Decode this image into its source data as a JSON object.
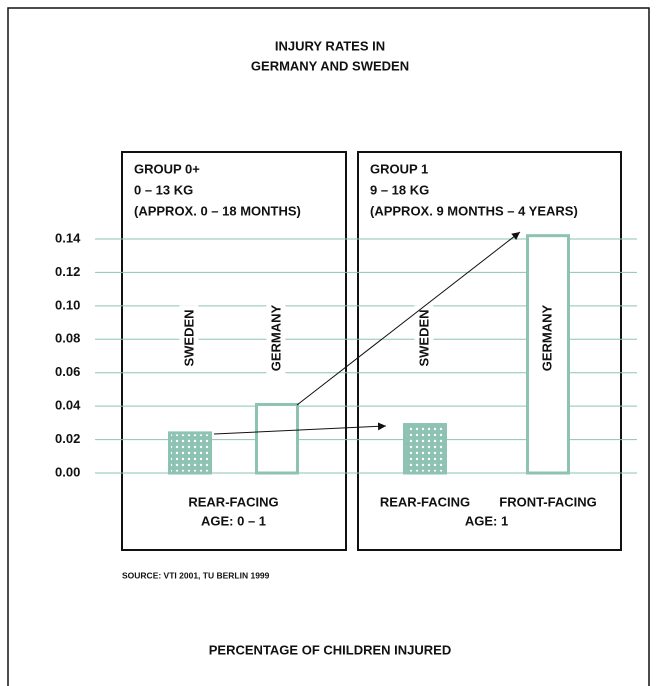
{
  "chart_data": {
    "type": "bar",
    "title": [
      "INJURY RATES IN",
      "GERMANY AND SWEDEN"
    ],
    "xlabel": "PERCENTAGE OF CHILDREN INJURED",
    "source": "SOURCE: VTI 2001, TU BERLIN 1999",
    "ylim": [
      0,
      0.14
    ],
    "yticks": [
      {
        "value": 0,
        "label": "0.00"
      },
      {
        "value": 0.02,
        "label": "0.02"
      },
      {
        "value": 0.04,
        "label": "0.04"
      },
      {
        "value": 0.06,
        "label": "0.06"
      },
      {
        "value": 0.08,
        "label": "0.08"
      },
      {
        "value": 0.1,
        "label": "0.10"
      },
      {
        "value": 0.12,
        "label": "0.12"
      },
      {
        "value": 0.14,
        "label": "0.14"
      }
    ],
    "grid": true,
    "color": "#8ec3b3",
    "groups": [
      {
        "label": [
          "GROUP 0+",
          "0 – 13 KG",
          "(APPROX. 0 – 18 MONTHS)"
        ],
        "bars": [
          {
            "name": "SWEDEN",
            "value": 0.024,
            "pattern": "dotted"
          },
          {
            "name": "GERMANY",
            "value": 0.041,
            "pattern": "outline"
          }
        ],
        "captions": [
          "REAR-FACING"
        ],
        "age": "AGE: 0 – 1"
      },
      {
        "label": [
          "GROUP 1",
          "9 – 18 KG",
          "(APPROX. 9 MONTHS – 4 YEARS)"
        ],
        "bars": [
          {
            "name": "SWEDEN",
            "value": 0.029,
            "pattern": "dotted"
          },
          {
            "name": "GERMANY",
            "value": 0.142,
            "pattern": "outline"
          }
        ],
        "captions": [
          "REAR-FACING",
          "FRONT-FACING"
        ],
        "age": "AGE: 1"
      }
    ]
  }
}
